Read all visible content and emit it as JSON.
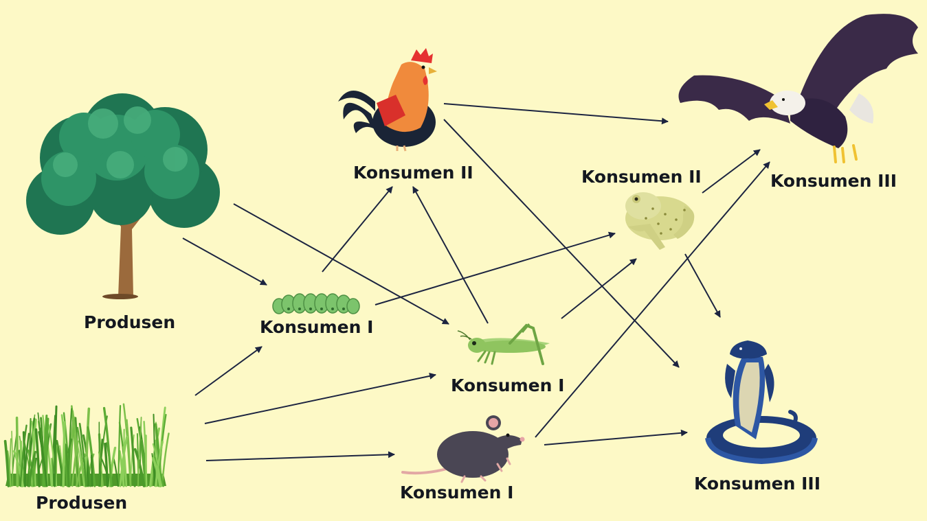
{
  "food_web": {
    "organisms": {
      "tree": {
        "icon": "tree-icon",
        "label": "Produsen"
      },
      "grass": {
        "icon": "grass-icon",
        "label": "Produsen"
      },
      "caterpillar": {
        "icon": "caterpillar-icon",
        "label": "Konsumen I"
      },
      "grasshopper": {
        "icon": "grasshopper-icon",
        "label": "Konsumen I"
      },
      "mouse": {
        "icon": "mouse-icon",
        "label": "Konsumen I"
      },
      "rooster": {
        "icon": "rooster-icon",
        "label": "Konsumen II"
      },
      "frog": {
        "icon": "frog-icon",
        "label": "Konsumen II"
      },
      "eagle": {
        "icon": "eagle-icon",
        "label": "Konsumen III"
      },
      "snake": {
        "icon": "snake-icon",
        "label": "Konsumen III"
      }
    },
    "links": [
      {
        "from": "tree",
        "to": "caterpillar"
      },
      {
        "from": "tree",
        "to": "grasshopper"
      },
      {
        "from": "grass",
        "to": "caterpillar"
      },
      {
        "from": "grass",
        "to": "grasshopper"
      },
      {
        "from": "grass",
        "to": "mouse"
      },
      {
        "from": "caterpillar",
        "to": "rooster"
      },
      {
        "from": "caterpillar",
        "to": "frog"
      },
      {
        "from": "grasshopper",
        "to": "rooster"
      },
      {
        "from": "grasshopper",
        "to": "frog"
      },
      {
        "from": "rooster",
        "to": "eagle"
      },
      {
        "from": "rooster",
        "to": "snake"
      },
      {
        "from": "frog",
        "to": "eagle"
      },
      {
        "from": "frog",
        "to": "snake"
      },
      {
        "from": "mouse",
        "to": "eagle"
      },
      {
        "from": "mouse",
        "to": "snake"
      }
    ],
    "colors": {
      "background": "#fdf9c6",
      "arrow": "#1c2440",
      "text": "#141820"
    }
  }
}
